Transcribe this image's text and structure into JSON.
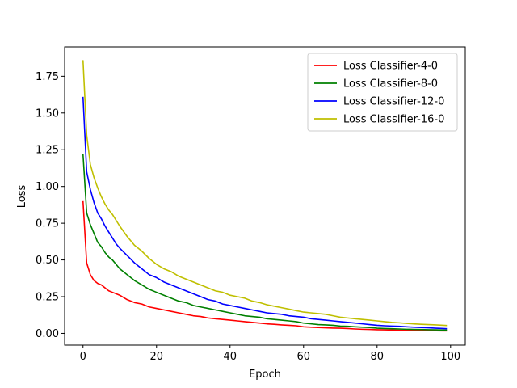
{
  "chart_data": {
    "type": "line",
    "xlabel": "Epoch",
    "ylabel": "Loss",
    "xlim": [
      -5,
      104
    ],
    "ylim": [
      -0.08,
      1.95
    ],
    "xticks": [
      0,
      20,
      40,
      60,
      80,
      100
    ],
    "yticks": [
      0.0,
      0.25,
      0.5,
      0.75,
      1.0,
      1.25,
      1.5,
      1.75
    ],
    "xtick_labels": [
      "0",
      "20",
      "40",
      "60",
      "80",
      "100"
    ],
    "ytick_labels": [
      "0.00",
      "0.25",
      "0.50",
      "0.75",
      "1.00",
      "1.25",
      "1.50",
      "1.75"
    ],
    "grid": false,
    "legend_position": "top-right",
    "x": [
      0,
      1,
      2,
      3,
      4,
      5,
      6,
      7,
      8,
      9,
      10,
      12,
      14,
      16,
      18,
      20,
      22,
      24,
      26,
      28,
      30,
      32,
      34,
      36,
      38,
      40,
      42,
      44,
      46,
      48,
      50,
      52,
      54,
      56,
      58,
      60,
      62,
      64,
      66,
      68,
      70,
      72,
      74,
      76,
      78,
      80,
      82,
      84,
      86,
      88,
      90,
      92,
      94,
      96,
      98,
      99
    ],
    "series": [
      {
        "name": "Loss Classifier-4-0",
        "color": "#ff0000",
        "values": [
          0.9,
          0.48,
          0.4,
          0.36,
          0.34,
          0.33,
          0.31,
          0.29,
          0.28,
          0.27,
          0.26,
          0.23,
          0.21,
          0.2,
          0.18,
          0.17,
          0.16,
          0.15,
          0.14,
          0.13,
          0.12,
          0.115,
          0.105,
          0.1,
          0.095,
          0.09,
          0.085,
          0.08,
          0.075,
          0.07,
          0.065,
          0.062,
          0.058,
          0.055,
          0.052,
          0.045,
          0.042,
          0.04,
          0.038,
          0.036,
          0.035,
          0.033,
          0.03,
          0.028,
          0.027,
          0.025,
          0.024,
          0.023,
          0.022,
          0.021,
          0.02,
          0.02,
          0.019,
          0.018,
          0.017,
          0.017
        ]
      },
      {
        "name": "Loss Classifier-8-0",
        "color": "#008000",
        "values": [
          1.22,
          0.82,
          0.74,
          0.68,
          0.62,
          0.59,
          0.55,
          0.52,
          0.5,
          0.47,
          0.44,
          0.4,
          0.36,
          0.33,
          0.3,
          0.28,
          0.26,
          0.24,
          0.22,
          0.21,
          0.19,
          0.18,
          0.17,
          0.16,
          0.15,
          0.14,
          0.13,
          0.12,
          0.115,
          0.11,
          0.1,
          0.095,
          0.09,
          0.085,
          0.08,
          0.07,
          0.065,
          0.06,
          0.058,
          0.055,
          0.05,
          0.048,
          0.045,
          0.042,
          0.04,
          0.035,
          0.033,
          0.032,
          0.03,
          0.028,
          0.027,
          0.026,
          0.025,
          0.024,
          0.023,
          0.022
        ]
      },
      {
        "name": "Loss Classifier-12-0",
        "color": "#0000ff",
        "values": [
          1.61,
          1.1,
          0.98,
          0.89,
          0.82,
          0.78,
          0.73,
          0.69,
          0.65,
          0.61,
          0.58,
          0.53,
          0.48,
          0.44,
          0.4,
          0.38,
          0.35,
          0.33,
          0.31,
          0.29,
          0.27,
          0.25,
          0.23,
          0.22,
          0.2,
          0.19,
          0.18,
          0.17,
          0.16,
          0.15,
          0.14,
          0.135,
          0.13,
          0.12,
          0.115,
          0.11,
          0.1,
          0.095,
          0.09,
          0.085,
          0.08,
          0.075,
          0.07,
          0.065,
          0.06,
          0.055,
          0.052,
          0.05,
          0.048,
          0.045,
          0.042,
          0.04,
          0.038,
          0.035,
          0.033,
          0.032
        ]
      },
      {
        "name": "Loss Classifier-16-0",
        "color": "#bfbf00",
        "values": [
          1.86,
          1.35,
          1.15,
          1.06,
          0.99,
          0.93,
          0.88,
          0.84,
          0.81,
          0.77,
          0.73,
          0.66,
          0.6,
          0.56,
          0.51,
          0.47,
          0.44,
          0.42,
          0.39,
          0.37,
          0.35,
          0.33,
          0.31,
          0.29,
          0.28,
          0.26,
          0.25,
          0.24,
          0.22,
          0.21,
          0.195,
          0.185,
          0.175,
          0.165,
          0.155,
          0.145,
          0.14,
          0.135,
          0.13,
          0.12,
          0.11,
          0.105,
          0.1,
          0.095,
          0.09,
          0.085,
          0.08,
          0.075,
          0.072,
          0.068,
          0.065,
          0.062,
          0.06,
          0.058,
          0.055,
          0.054
        ]
      }
    ]
  }
}
